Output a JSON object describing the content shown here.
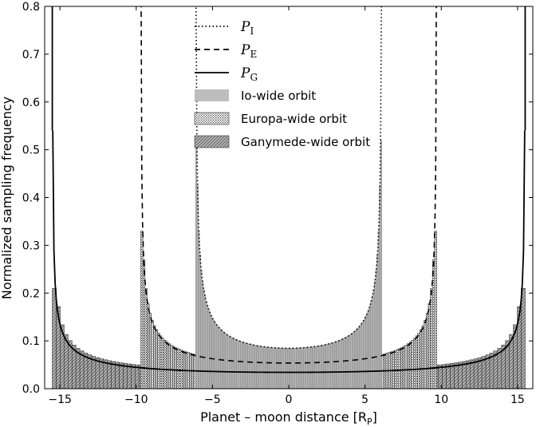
{
  "chart_data": {
    "type": "bar",
    "xlabel": "Planet – moon distance [R",
    "xlabel_sub": "P",
    "xlabel_end": "]",
    "ylabel": "Normalized sampling frequency",
    "xlim": [
      -16,
      16
    ],
    "ylim": [
      0,
      0.8
    ],
    "x_ticks": [
      -15,
      -10,
      -5,
      0,
      5,
      10,
      15
    ],
    "x_tick_labels": [
      "−15",
      "−10",
      "−5",
      "0",
      "5",
      "10",
      "15"
    ],
    "y_ticks": [
      0.0,
      0.1,
      0.2,
      0.3,
      0.4,
      0.5,
      0.6,
      0.7,
      0.8
    ],
    "y_tick_labels": [
      "0.0",
      "0.1",
      "0.2",
      "0.3",
      "0.4",
      "0.5",
      "0.6",
      "0.7",
      "0.8"
    ],
    "legend_position": "top-center",
    "series": [
      {
        "name": "P",
        "subscript": "I",
        "kind": "curve",
        "style": "dotted",
        "orbit_radius": 6.1,
        "color": "#000000"
      },
      {
        "name": "P",
        "subscript": "E",
        "kind": "curve",
        "style": "dashed",
        "orbit_radius": 9.7,
        "color": "#000000"
      },
      {
        "name": "P",
        "subscript": "G",
        "kind": "curve",
        "style": "solid",
        "orbit_radius": 15.5,
        "color": "#000000"
      },
      {
        "name": "Io-wide orbit",
        "kind": "histogram",
        "fill": "light-gray",
        "orbit_radius": 6.1,
        "edge_peak": 0.52,
        "color": "#bdbdbd"
      },
      {
        "name": "Europa-wide orbit",
        "kind": "histogram",
        "fill": "dotted-hatch",
        "orbit_radius": 9.7,
        "edge_peak": 0.33,
        "color": "#d9d9d9"
      },
      {
        "name": "Ganymede-wide orbit",
        "kind": "histogram",
        "fill": "diagonal-hatch",
        "orbit_radius": 15.5,
        "edge_peak": 0.21,
        "color": "#a8a8a8"
      }
    ]
  }
}
